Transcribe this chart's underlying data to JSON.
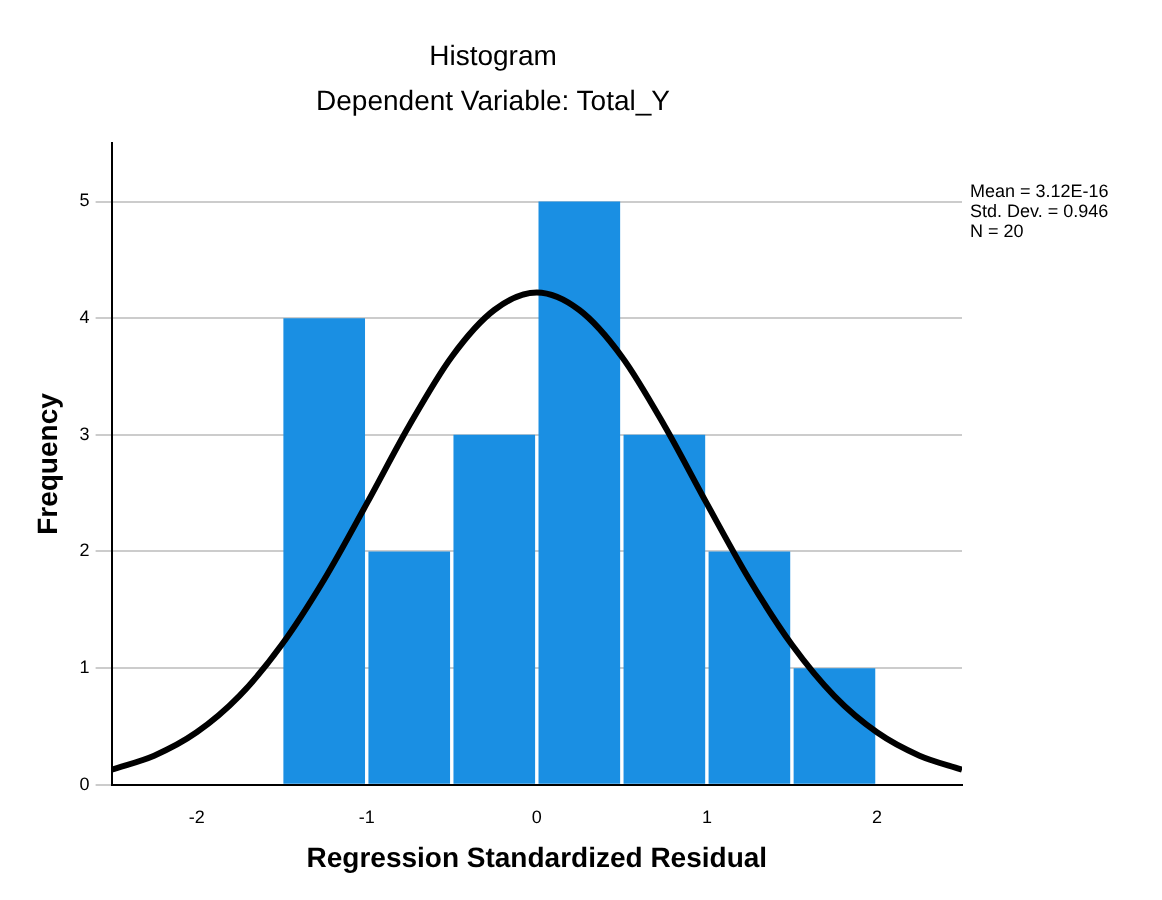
{
  "chart_data": {
    "type": "histogram",
    "title": "Histogram",
    "subtitle": "Dependent Variable: Total_Y",
    "xlabel": "Regression Standardized Residual",
    "ylabel": "Frequency",
    "bins": [
      -1.5,
      -1,
      -0.5,
      0,
      0.5,
      1,
      1.5,
      2
    ],
    "series": [
      {
        "color": "#1a8fe3",
        "values": [
          4,
          2,
          3,
          5,
          3,
          2,
          1
        ]
      },
      {
        "type": "line",
        "color": "#000000",
        "x": [
          -2.5,
          -2.25,
          -2,
          -1.75,
          -1.5,
          -1.25,
          -1,
          -0.75,
          -0.5,
          -0.25,
          0,
          0.25,
          0.5,
          0.75,
          1,
          1.25,
          1.5,
          1.75,
          2,
          2.25,
          2.5
        ],
        "values": [
          0.13,
          0.25,
          0.45,
          0.76,
          1.2,
          1.76,
          2.41,
          3.08,
          3.67,
          4.07,
          4.22,
          4.07,
          3.67,
          3.08,
          2.41,
          1.76,
          1.2,
          0.76,
          0.45,
          0.25,
          0.13
        ]
      }
    ],
    "xlim": [
      -2.5,
      2.5
    ],
    "xticks": [
      -2,
      -1,
      0,
      1,
      2
    ],
    "ylim": [
      0,
      5.5
    ],
    "yticks": [
      0,
      1,
      2,
      3,
      4,
      5
    ],
    "grid": "y",
    "annotations": [
      "Mean = 3.12E-16",
      "Std. Dev. = 0.946",
      "N = 20"
    ]
  }
}
